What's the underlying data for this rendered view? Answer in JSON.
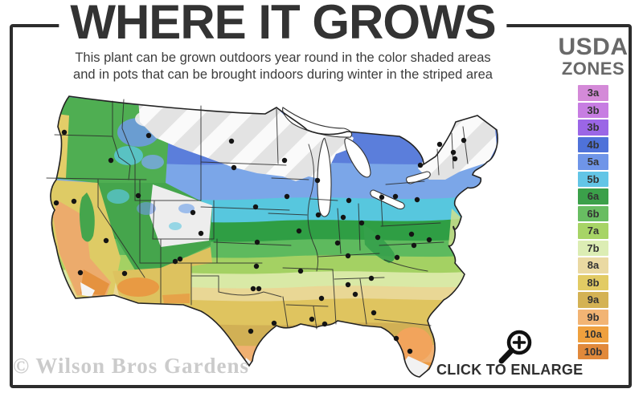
{
  "header": {
    "title": "WHERE IT GROWS",
    "subtitle_line1": "This plant can be grown outdoors year round in the color shaded areas",
    "subtitle_line2": "and in pots that can be brought indoors during winter in the striped area"
  },
  "legend": {
    "title_line1": "USDA",
    "title_line2": "ZONES",
    "zones": [
      {
        "label": "3a",
        "color": "#d48ad8"
      },
      {
        "label": "3b",
        "color": "#c77de2"
      },
      {
        "label": "3b",
        "color": "#9b66e6"
      },
      {
        "label": "4b",
        "color": "#4f72d9"
      },
      {
        "label": "5a",
        "color": "#6f95e8"
      },
      {
        "label": "5b",
        "color": "#63c5e6"
      },
      {
        "label": "6a",
        "color": "#3ba04a"
      },
      {
        "label": "6b",
        "color": "#68bd62"
      },
      {
        "label": "7a",
        "color": "#a7d466"
      },
      {
        "label": "7b",
        "color": "#dcedb4"
      },
      {
        "label": "8a",
        "color": "#ead9a2"
      },
      {
        "label": "8b",
        "color": "#e2cb64"
      },
      {
        "label": "9a",
        "color": "#d4b254"
      },
      {
        "label": "9b",
        "color": "#f2b474"
      },
      {
        "label": "10a",
        "color": "#efa03e"
      },
      {
        "label": "10b",
        "color": "#e1893b"
      }
    ]
  },
  "footer": {
    "watermark": "© Wilson Bros Gardens",
    "enlarge_label": "CLICK TO ENLARGE",
    "enlarge_icon": "magnifying-glass-plus-icon"
  },
  "palette": {
    "frame": "#2d2d2d",
    "stripe_base": "#e3e3e3",
    "stripe_highlight": "#fafafa"
  }
}
